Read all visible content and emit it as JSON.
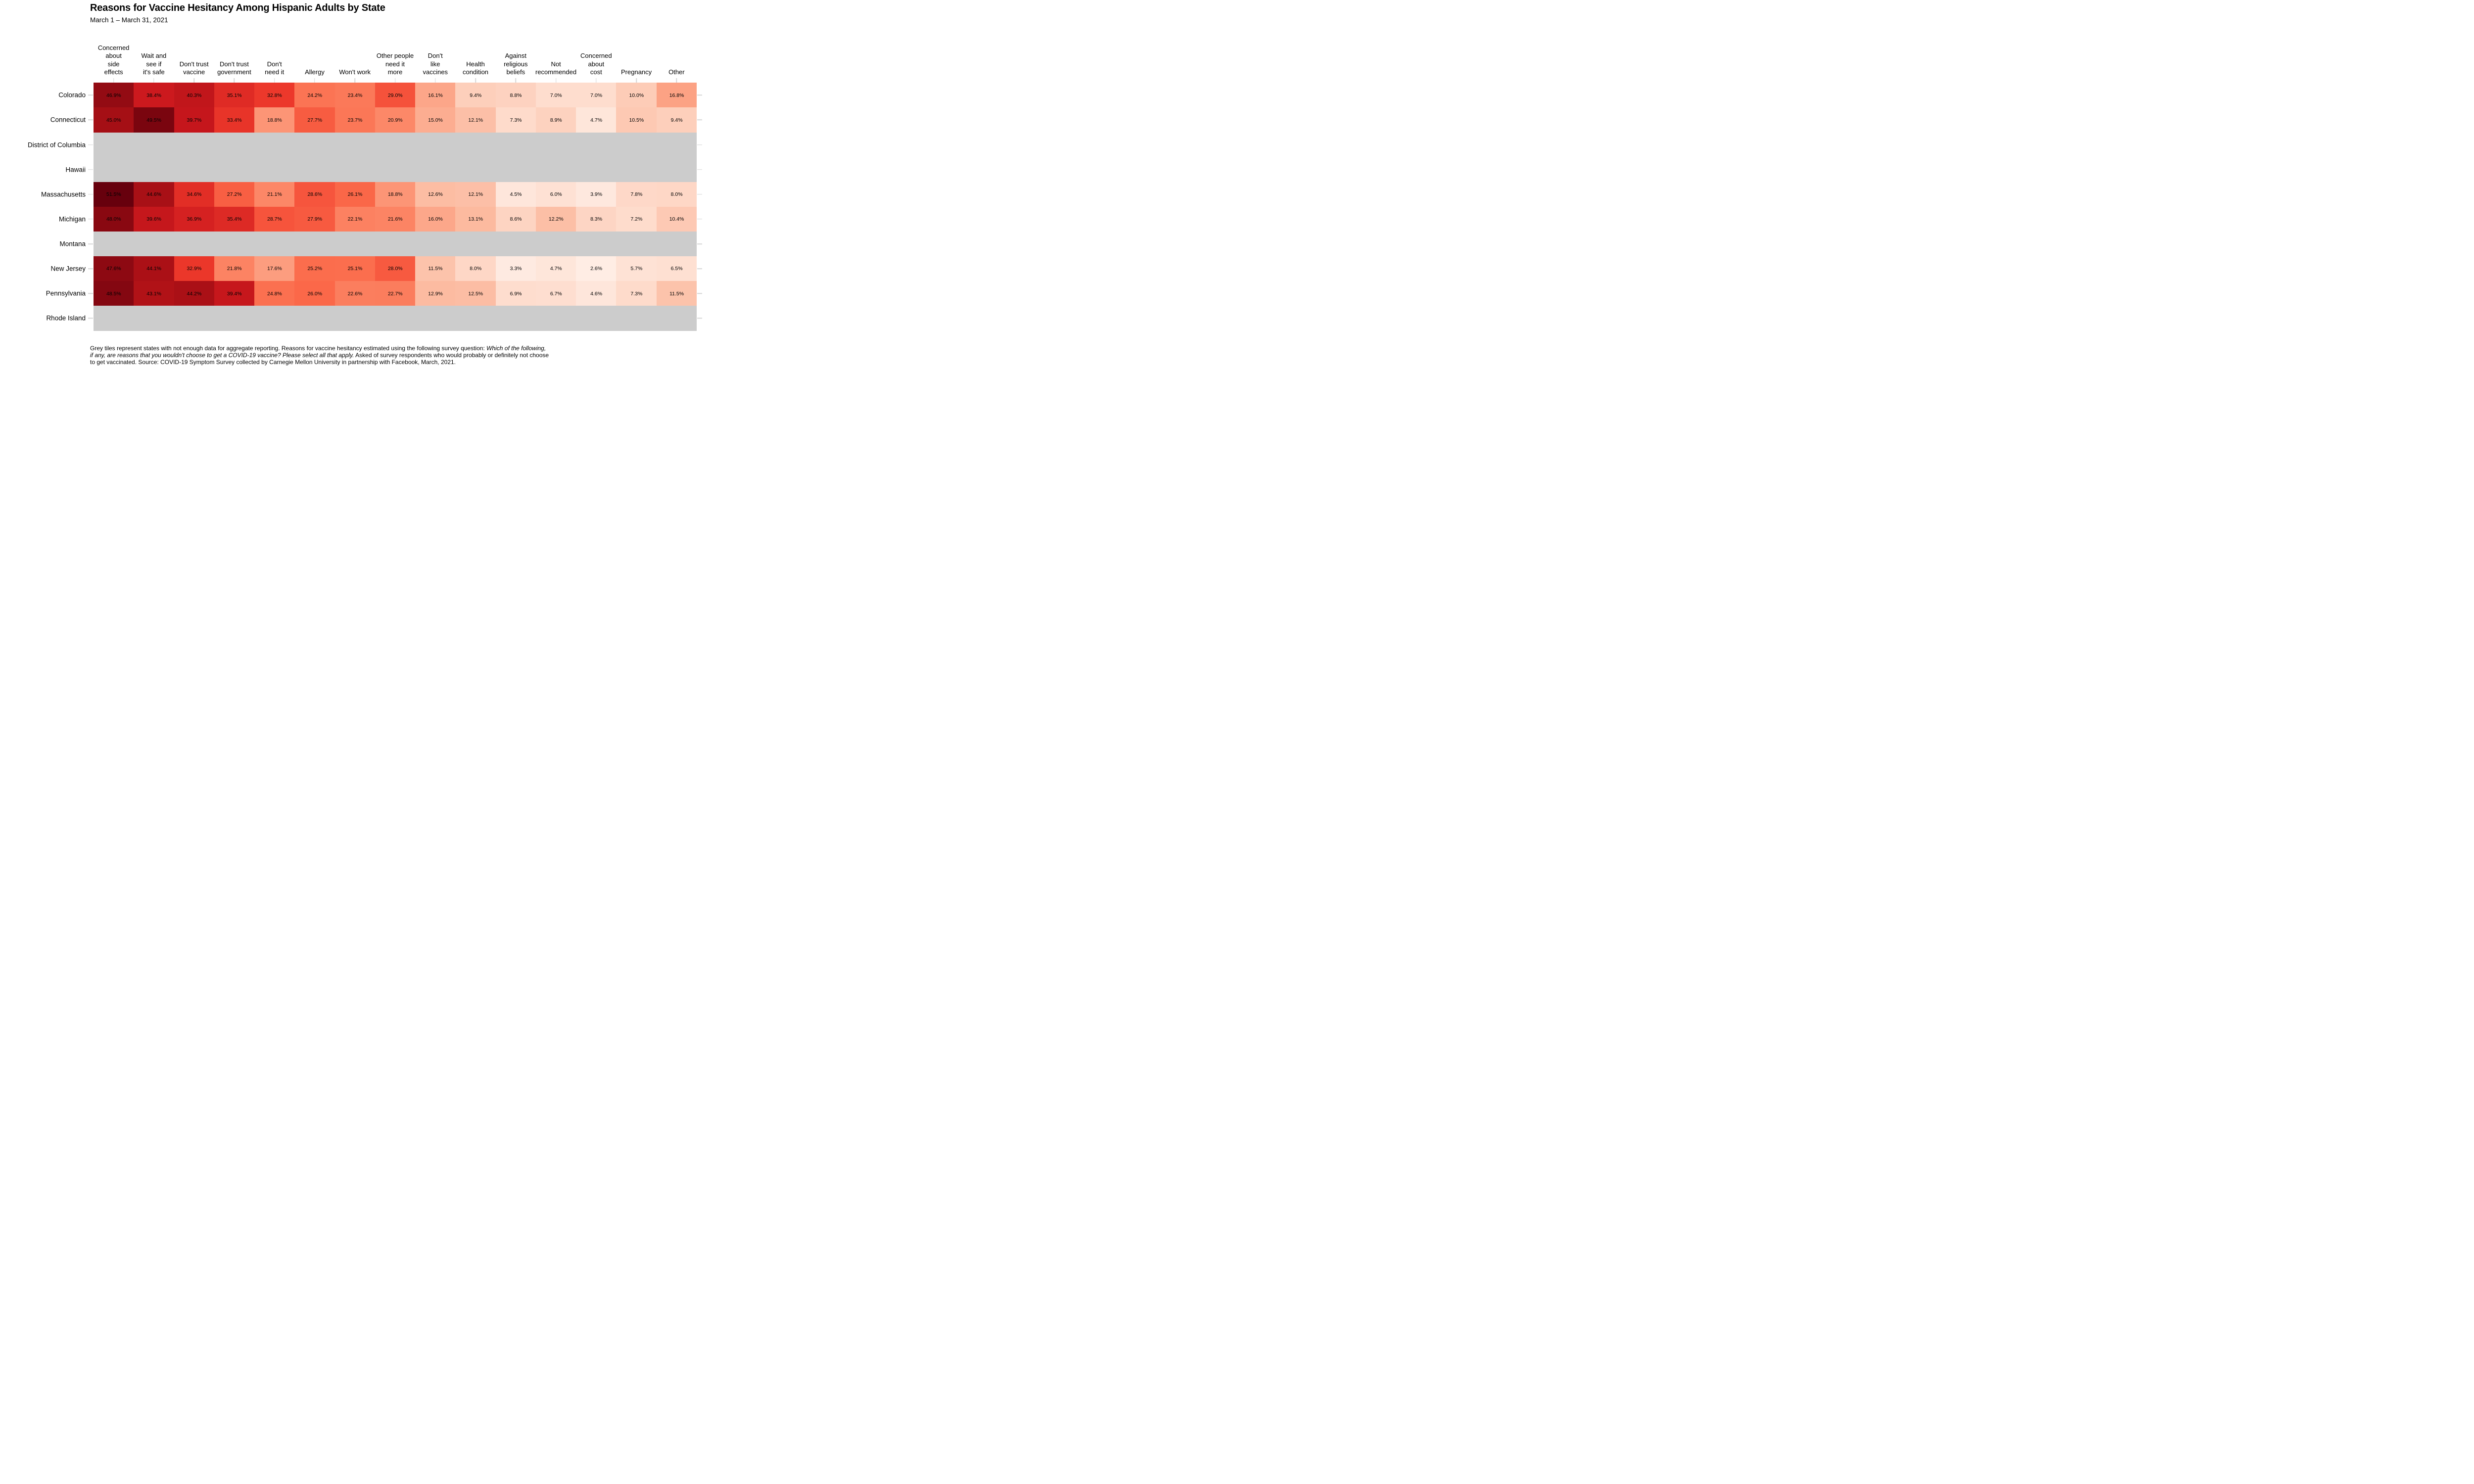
{
  "title": "Reasons for Vaccine Hesitancy Among Hispanic Adults by State",
  "subtitle": "March 1 – March 31, 2021",
  "footnote_lines": [
    [
      {
        "text": "Grey tiles represent states with not enough data for aggregate reporting. Reasons for vaccine hesitancy estimated using the following survey question: ",
        "italic": false
      },
      {
        "text": "Which of the following,",
        "italic": true
      }
    ],
    [
      {
        "text": "if any, are reasons that you wouldn't choose to get a COVID-19 vaccine? Please select all that apply.",
        "italic": true
      },
      {
        "text": " Asked of survey respondents who would probably or definitely not choose",
        "italic": false
      }
    ],
    [
      {
        "text": "to get vaccinated. Source: COVID-19 Symptom Survey collected by Carnegie Mellon University in partnership with Facebook, March, 2021.",
        "italic": false
      }
    ]
  ],
  "chart_data": {
    "type": "heatmap",
    "title": "Reasons for Vaccine Hesitancy Among Hispanic Adults by State",
    "subtitle": "March 1 – March 31, 2021",
    "columns": [
      "Concerned about side effects",
      "Wait and see if it's safe",
      "Don't trust vaccine",
      "Don't trust government",
      "Don't need it",
      "Allergy",
      "Won't work",
      "Other people need it more",
      "Don't like vaccines",
      "Health condition",
      "Against religious beliefs",
      "Not recommended",
      "Concerned about cost",
      "Pregnancy",
      "Other"
    ],
    "column_label_lines": [
      "Concerned\nabout\nside\neffects",
      "Wait and\nsee if\nit's safe",
      "Don't trust\nvaccine",
      "Don't trust\ngovernment",
      "Don't\nneed it",
      "Allergy",
      "Won't work",
      "Other people\nneed it\nmore",
      "Don't\nlike\nvaccines",
      "Health\ncondition",
      "Against\nreligious\nbeliefs",
      "Not\nrecommended",
      "Concerned\nabout\ncost",
      "Pregnancy",
      "Other"
    ],
    "rows": [
      {
        "state": "Colorado",
        "values": [
          46.9,
          38.4,
          40.3,
          35.1,
          32.8,
          24.2,
          23.4,
          29.0,
          16.1,
          9.4,
          8.8,
          7.0,
          7.0,
          10.0,
          16.8
        ]
      },
      {
        "state": "Connecticut",
        "values": [
          45.0,
          49.5,
          39.7,
          33.4,
          18.8,
          27.7,
          23.7,
          20.9,
          15.0,
          12.1,
          7.3,
          8.9,
          4.7,
          10.5,
          9.4
        ]
      },
      {
        "state": "District of Columbia",
        "values": [
          null,
          null,
          null,
          null,
          null,
          null,
          null,
          null,
          null,
          null,
          null,
          null,
          null,
          null,
          null
        ]
      },
      {
        "state": "Hawaii",
        "values": [
          null,
          null,
          null,
          null,
          null,
          null,
          null,
          null,
          null,
          null,
          null,
          null,
          null,
          null,
          null
        ]
      },
      {
        "state": "Massachusetts",
        "values": [
          51.5,
          44.6,
          34.6,
          27.2,
          21.1,
          28.6,
          26.1,
          18.8,
          12.6,
          12.1,
          4.5,
          6.0,
          3.9,
          7.8,
          8.0
        ]
      },
      {
        "state": "Michigan",
        "values": [
          48.0,
          39.6,
          36.9,
          35.4,
          28.7,
          27.9,
          22.1,
          21.6,
          16.0,
          13.1,
          8.6,
          12.2,
          8.3,
          7.2,
          10.4
        ]
      },
      {
        "state": "Montana",
        "values": [
          null,
          null,
          null,
          null,
          null,
          null,
          null,
          null,
          null,
          null,
          null,
          null,
          null,
          null,
          null
        ]
      },
      {
        "state": "New Jersey",
        "values": [
          47.6,
          44.1,
          32.9,
          21.8,
          17.6,
          25.2,
          25.1,
          28.0,
          11.5,
          8.0,
          3.3,
          4.7,
          2.6,
          5.7,
          6.5
        ]
      },
      {
        "state": "Pennsylvania",
        "values": [
          48.5,
          43.1,
          44.2,
          39.4,
          24.8,
          26.0,
          22.6,
          22.7,
          12.9,
          12.5,
          6.9,
          6.7,
          4.6,
          7.3,
          11.5
        ]
      },
      {
        "state": "Rhode Island",
        "values": [
          null,
          null,
          null,
          null,
          null,
          null,
          null,
          null,
          null,
          null,
          null,
          null,
          null,
          null,
          null
        ]
      }
    ],
    "value_unit": "%",
    "value_format": "one_decimal_percent",
    "color_scale": {
      "type": "sequential",
      "name": "Reds",
      "domain": [
        0,
        51.5
      ],
      "stops": [
        "#fff5f0",
        "#fee0d2",
        "#fcbba1",
        "#fc9272",
        "#fb6a4a",
        "#ef3b2c",
        "#cb181d",
        "#a50f15",
        "#67000d"
      ],
      "no_data_color": "#cccccc",
      "tick_color": "#d6d6d6"
    },
    "legend": "none",
    "grid": "off"
  }
}
